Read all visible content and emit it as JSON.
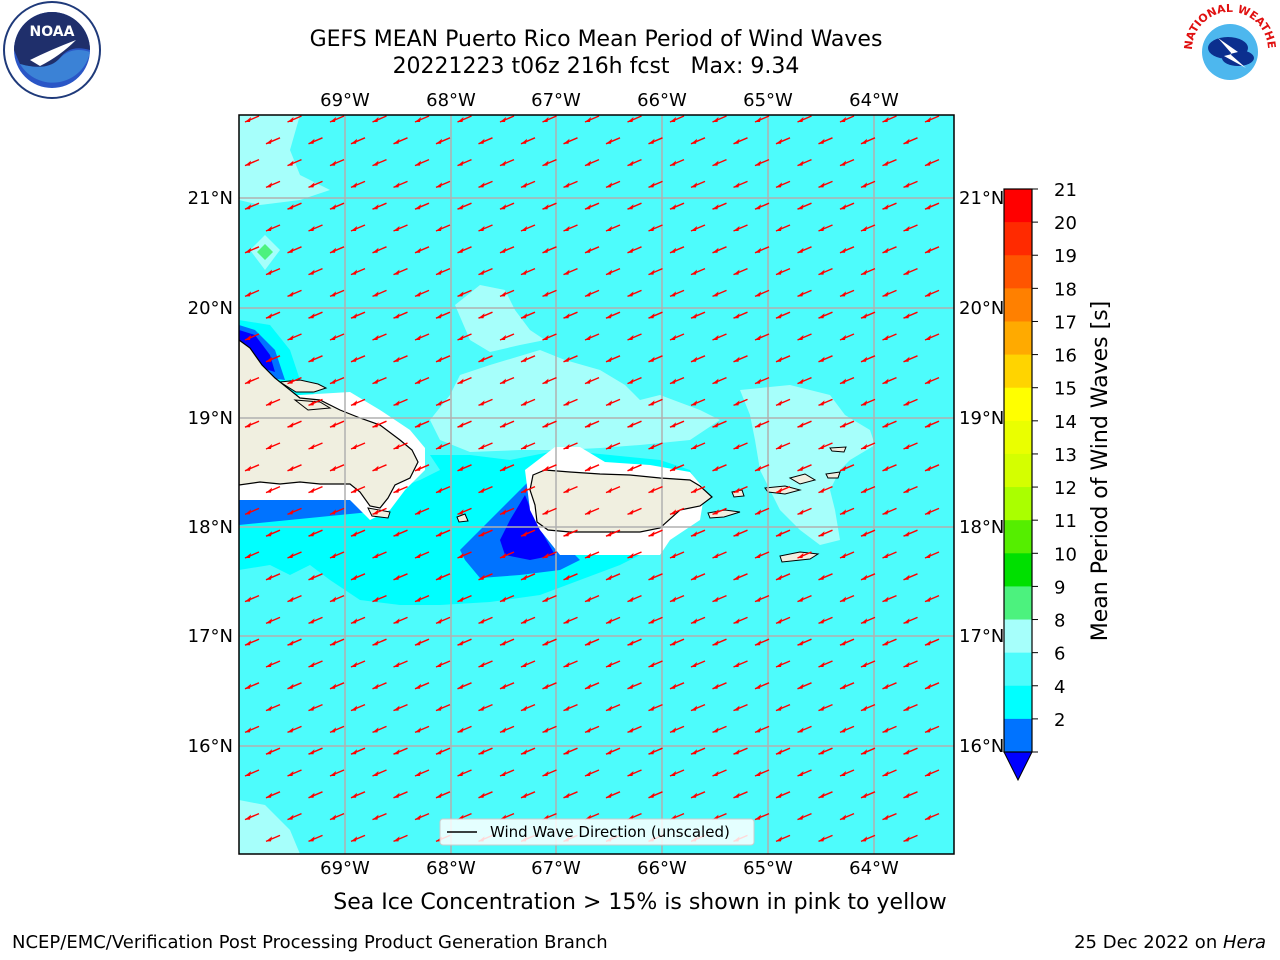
{
  "title": {
    "line1": "GEFS MEAN Puerto Rico Mean Period of Wind Waves",
    "run": "20221223 t06z 216h fcst",
    "max": "Max: 9.34"
  },
  "map": {
    "lon_ticks": [
      "69°W",
      "68°W",
      "67°W",
      "66°W",
      "65°W",
      "64°W"
    ],
    "lat_ticks": [
      "21°N",
      "20°N",
      "19°N",
      "18°N",
      "17°N",
      "16°N"
    ],
    "legend_label": "Wind Wave Direction (unscaled)",
    "arrow_color": "#ff0000",
    "ocean_color": "#4dfcfc",
    "land_color": "#f0efe0"
  },
  "colorbar": {
    "label": "Mean Period of Wind Waves [s]",
    "ticks": [
      "21",
      "20",
      "19",
      "18",
      "17",
      "16",
      "15",
      "14",
      "13",
      "12",
      "11",
      "10",
      "9",
      "8",
      "6",
      "4",
      "2"
    ],
    "bins": [
      "#ff0000",
      "#ff2a00",
      "#ff5500",
      "#ff8000",
      "#ffaa00",
      "#ffd400",
      "#ffff00",
      "#eaff00",
      "#d4ff00",
      "#aaff00",
      "#55ee00",
      "#00e000",
      "#4cf27e",
      "#a6fffb",
      "#4dfcfc",
      "#00ffff",
      "#0073ff"
    ],
    "under_color": "#0000ff"
  },
  "note": "Sea Ice Concentration > 15% is shown in pink to yellow",
  "footer": {
    "left": "NCEP/EMC/Verification Post Processing Product Generation Branch",
    "right_prefix": "25 Dec 2022 on ",
    "right_host": "Hera"
  },
  "logos": {
    "noaa_text": "NOAA",
    "nws_text": "NATIONAL WEATHER SERVICE"
  }
}
